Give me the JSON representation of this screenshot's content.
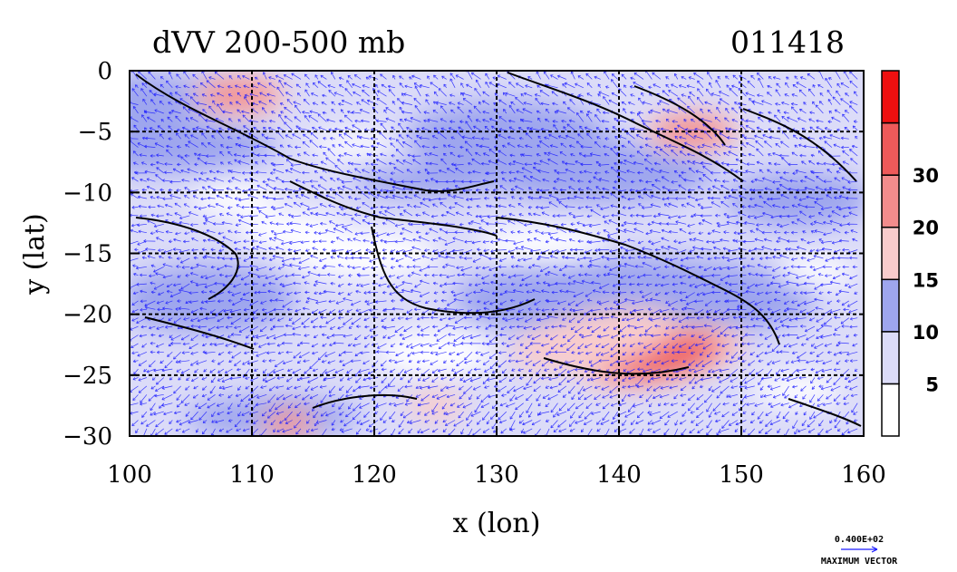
{
  "chart_data": {
    "type": "heatmap",
    "title": "dVV 200-500 mb",
    "timestamp": "011418",
    "xlabel": "x (lon)",
    "ylabel": "y (lat)",
    "xlim": [
      100,
      160
    ],
    "ylim": [
      -30,
      0
    ],
    "x_ticks": [
      "100",
      "110",
      "120",
      "130",
      "140",
      "150",
      "160"
    ],
    "y_ticks": [
      "0",
      "−5",
      "−10",
      "−15",
      "−20",
      "−25",
      "−30"
    ],
    "grid": true,
    "colorbar": {
      "levels": [
        0,
        5,
        10,
        15,
        20,
        30,
        40
      ],
      "tick_labels": [
        "5",
        "10",
        "15",
        "20",
        "30"
      ],
      "colors": [
        "#ffffff",
        "#dcdcf8",
        "#9ea6ee",
        "#f8cccc",
        "#f28c8c",
        "#ee5a5a",
        "#ee1010"
      ]
    },
    "features": [
      {
        "lon": 143.5,
        "lat": -23.5,
        "value": 34,
        "extent": "large"
      },
      {
        "lon": 138,
        "lat": -22,
        "value": 18,
        "extent": "large"
      },
      {
        "lon": 146,
        "lat": -5,
        "value": 21,
        "extent": "medium"
      },
      {
        "lon": 109,
        "lat": -2,
        "value": 21,
        "extent": "medium"
      },
      {
        "lon": 113,
        "lat": -29,
        "value": 22,
        "extent": "small"
      },
      {
        "lon": 125,
        "lat": -27.5,
        "value": 15,
        "extent": "small"
      },
      {
        "lon": 127,
        "lat": -8,
        "value": 13,
        "extent": "small"
      }
    ],
    "vector_key": {
      "value": "0.400E+02",
      "label": "MAXIMUM VECTOR"
    }
  }
}
